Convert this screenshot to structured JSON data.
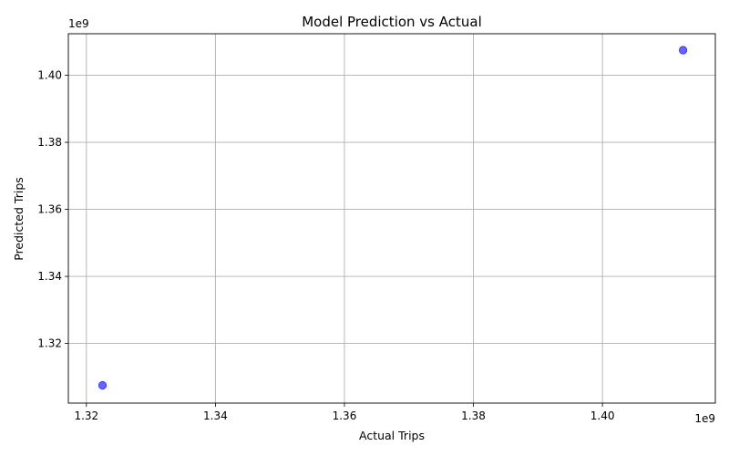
{
  "chart_data": {
    "type": "scatter",
    "title": "Model Prediction vs Actual",
    "xlabel": "Actual Trips",
    "ylabel": "Predicted Trips",
    "x_offset_label": "1e9",
    "y_offset_label": "1e9",
    "grid": true,
    "xlim": [
      1.3172,
      1.4175
    ],
    "ylim": [
      1.3022,
      1.4124
    ],
    "x_ticks": [
      {
        "value": 1.32,
        "label": "1.32"
      },
      {
        "value": 1.34,
        "label": "1.34"
      },
      {
        "value": 1.36,
        "label": "1.36"
      },
      {
        "value": 1.38,
        "label": "1.38"
      },
      {
        "value": 1.4,
        "label": "1.40"
      }
    ],
    "y_ticks": [
      {
        "value": 1.32,
        "label": "1.32"
      },
      {
        "value": 1.34,
        "label": "1.34"
      },
      {
        "value": 1.36,
        "label": "1.36"
      },
      {
        "value": 1.38,
        "label": "1.38"
      },
      {
        "value": 1.4,
        "label": "1.40"
      }
    ],
    "points": [
      {
        "x": 1.3225,
        "y": 1.3075
      },
      {
        "x": 1.4125,
        "y": 1.4075
      }
    ],
    "marker_color": "#0000ff"
  }
}
